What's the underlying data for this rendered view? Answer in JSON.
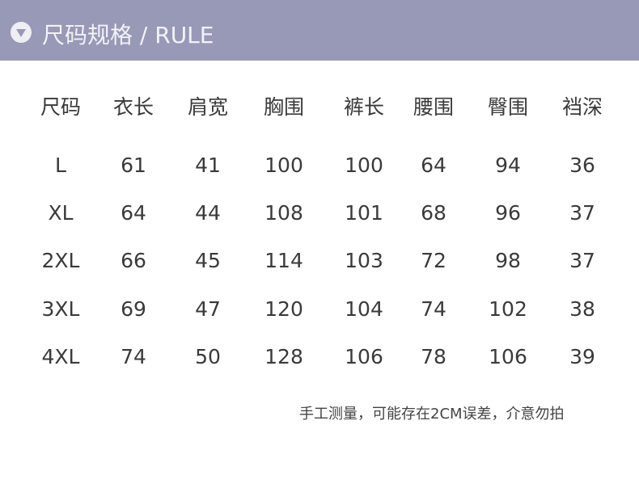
{
  "header": {
    "title": "尺码规格 / RULE",
    "icon": "triangle-down-circle-icon",
    "color": "#9899b7"
  },
  "table": {
    "columns": [
      "尺码",
      "衣长",
      "肩宽",
      "胸围",
      "裤长",
      "腰围",
      "臀围",
      "裆深"
    ],
    "rows": [
      [
        "L",
        "61",
        "41",
        "100",
        "100",
        "64",
        "94",
        "36"
      ],
      [
        "XL",
        "64",
        "44",
        "108",
        "101",
        "68",
        "96",
        "37"
      ],
      [
        "2XL",
        "66",
        "45",
        "114",
        "103",
        "72",
        "98",
        "37"
      ],
      [
        "3XL",
        "69",
        "47",
        "120",
        "104",
        "74",
        "102",
        "38"
      ],
      [
        "4XL",
        "74",
        "50",
        "128",
        "106",
        "78",
        "106",
        "39"
      ]
    ]
  },
  "note": "手工测量，可能存在2CM误差，介意勿拍"
}
